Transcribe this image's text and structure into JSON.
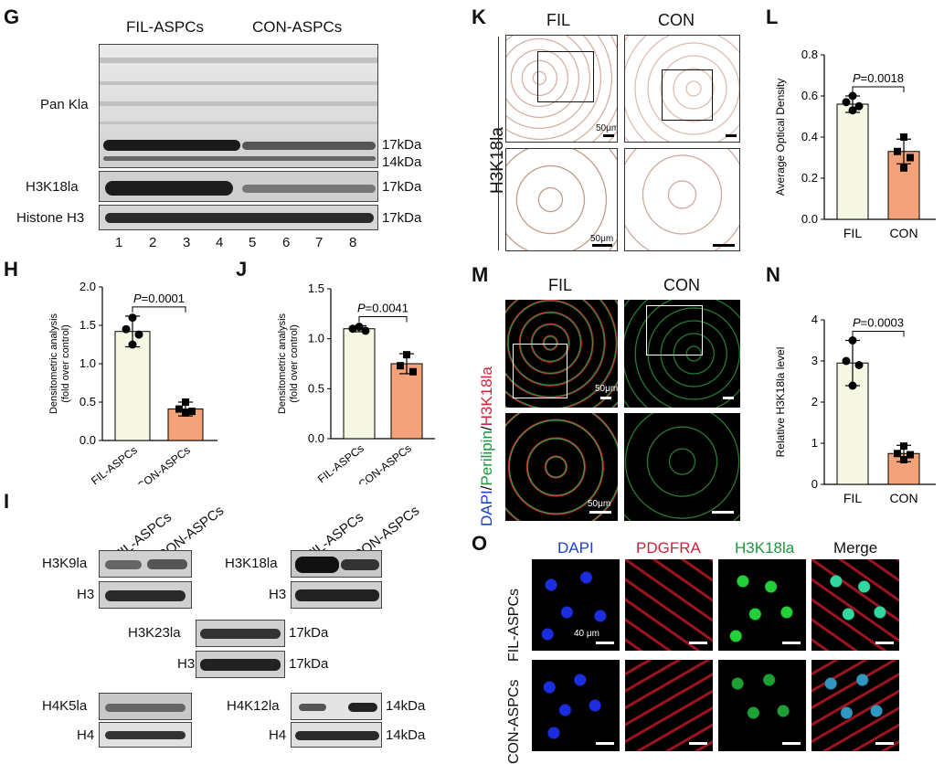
{
  "panels": {
    "G": {
      "label": "G",
      "groups": [
        "FIL-ASPCs",
        "CON-ASPCs"
      ],
      "rows": [
        "Pan Kla",
        "H3K18la",
        "Histone H3"
      ],
      "size_labels": [
        "17kDa",
        "14kDa",
        "17kDa",
        "17kDa"
      ],
      "lanes": [
        "1",
        "2",
        "3",
        "4",
        "5",
        "6",
        "7",
        "8"
      ]
    },
    "K": {
      "label": "K",
      "cols": [
        "FIL",
        "CON"
      ],
      "side": "H3K18la",
      "scale": "50μm"
    },
    "L": {
      "label": "L"
    },
    "H": {
      "label": "H"
    },
    "J": {
      "label": "J"
    },
    "M": {
      "label": "M",
      "cols": [
        "FIL",
        "CON"
      ],
      "side_dapi": "DAPI",
      "side_peri": "Perilipin",
      "side_h3": "H3K18la",
      "slash1": "/",
      "slash2": "/",
      "scale": "50μm"
    },
    "N": {
      "label": "N"
    },
    "I": {
      "label": "I",
      "groups": [
        "FIL-ASPCs",
        "CON-ASPCs"
      ],
      "blots": [
        "H3K9la",
        "H3",
        "H3K18la",
        "H3",
        "H3K23la",
        "H3",
        "H4K5la",
        "H4",
        "H4K12la",
        "H4"
      ],
      "kda": [
        "17kDa",
        "17kDa",
        "14kDa",
        "14kDa"
      ]
    },
    "O": {
      "label": "O",
      "cols": [
        "DAPI",
        "PDGFRA",
        "H3K18la",
        "Merge"
      ],
      "rows": [
        "FIL-ASPCs",
        "CON-ASPCs"
      ],
      "scale": "40 μm"
    }
  },
  "chart_data": [
    {
      "id": "H",
      "type": "bar",
      "categories": [
        "FIL-ASPCs",
        "CON-ASPCs"
      ],
      "values": [
        1.42,
        0.41
      ],
      "errors": [
        0.2,
        0.09
      ],
      "points": [
        [
          1.6,
          1.45,
          1.38,
          1.25
        ],
        [
          0.5,
          0.41,
          0.38,
          0.36
        ]
      ],
      "ylabel": "Densitometric analysis\n(fold over control)",
      "ylabel1": "Densitometric analysis",
      "ylabel2": "(fold over control)",
      "ylim": [
        0,
        2.0
      ],
      "yticks": [
        "0.0",
        "0.5",
        "1.0",
        "1.5",
        "2.0"
      ],
      "pvalue": "P=0.0001",
      "colors": [
        "#f6f8e4",
        "#f4a27a"
      ]
    },
    {
      "id": "J",
      "type": "bar",
      "categories": [
        "FIL-ASPCs",
        "CON-ASPCs"
      ],
      "values": [
        1.1,
        0.75
      ],
      "errors": [
        0.03,
        0.1
      ],
      "points": [
        [
          1.12,
          1.1,
          1.08
        ],
        [
          0.84,
          0.73,
          0.67
        ]
      ],
      "ylabel1": "Densitometric analysis",
      "ylabel2": "(fold over control)",
      "ylim": [
        0,
        1.5
      ],
      "yticks": [
        "0.0",
        "0.5",
        "1.0",
        "1.5"
      ],
      "pvalue": "P=0.0041",
      "colors": [
        "#f6f8e4",
        "#f4a27a"
      ]
    },
    {
      "id": "L",
      "type": "bar",
      "categories": [
        "FIL",
        "CON"
      ],
      "values": [
        0.56,
        0.33
      ],
      "errors": [
        0.04,
        0.06
      ],
      "points": [
        [
          0.6,
          0.57,
          0.55,
          0.53
        ],
        [
          0.4,
          0.33,
          0.3,
          0.25
        ]
      ],
      "ylabel1": "Average Optical Density",
      "ylim": [
        0,
        0.8
      ],
      "yticks": [
        "0.0",
        "0.2",
        "0.4",
        "0.6",
        "0.8"
      ],
      "pvalue": "P=0.0018",
      "colors": [
        "#f6f8e4",
        "#f4a27a"
      ]
    },
    {
      "id": "N",
      "type": "bar",
      "categories": [
        "FIL",
        "CON"
      ],
      "values": [
        2.95,
        0.75
      ],
      "errors": [
        0.55,
        0.2
      ],
      "points": [
        [
          3.5,
          3.0,
          2.9,
          2.4
        ],
        [
          0.93,
          0.75,
          0.72,
          0.6
        ]
      ],
      "ylabel1": "Relative H3K18la  level",
      "ylim": [
        0,
        4
      ],
      "yticks": [
        "0",
        "1",
        "2",
        "3",
        "4"
      ],
      "pvalue": "P=0.0003",
      "colors": [
        "#f6f8e4",
        "#f4a27a"
      ]
    }
  ]
}
